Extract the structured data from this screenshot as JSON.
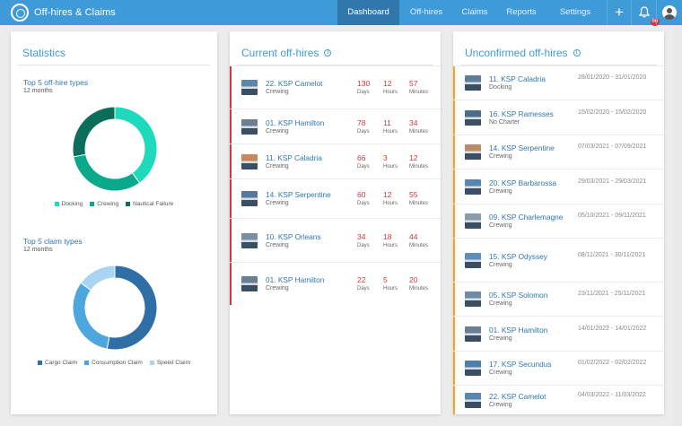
{
  "app": {
    "title": "Off-hires & Claims",
    "notification_count": "66"
  },
  "nav": [
    {
      "label": "Dashboard",
      "active": true
    },
    {
      "label": "Off-hires"
    },
    {
      "label": "Claims"
    },
    {
      "label": "Reports"
    },
    {
      "label": "Settings"
    }
  ],
  "icons": {
    "add": "plus-icon",
    "notifications": "bell-icon",
    "user": "avatar-icon",
    "logo": "helm-icon",
    "info": "info-icon"
  },
  "colors": {
    "accent": "#3f9ad8",
    "nav_active": "#2f77ac",
    "red": "#d9333f",
    "orange": "#f2a623"
  },
  "statistics": {
    "title": "Statistics",
    "offhire_types": {
      "title": "Top 5 off-hire types",
      "subtitle": "12 months",
      "slices": [
        {
          "label": "Docking",
          "value": 40,
          "color": "#1fd9bb"
        },
        {
          "label": "Crewing",
          "value": 32,
          "color": "#0ba98c"
        },
        {
          "label": "Nautical Failure",
          "value": 28,
          "color": "#0c6e5a"
        }
      ]
    },
    "claim_types": {
      "title": "Top 5 claim types",
      "subtitle": "12 months",
      "slices": [
        {
          "label": "Cargo Claim",
          "value": 53,
          "color": "#2f6fa6"
        },
        {
          "label": "Consumption Claim",
          "value": 32,
          "color": "#4ea6de"
        },
        {
          "label": "Speed Claim",
          "value": 15,
          "color": "#a9d5f2"
        }
      ]
    }
  },
  "chart_data": [
    {
      "type": "pie",
      "title": "Top 5 off-hire types",
      "subtitle": "12 months",
      "categories": [
        "Docking",
        "Crewing",
        "Nautical Failure"
      ],
      "values": [
        40,
        32,
        28
      ],
      "legend": "bottom"
    },
    {
      "type": "pie",
      "title": "Top 5 claim types",
      "subtitle": "12 months",
      "categories": [
        "Cargo Claim",
        "Consumption Claim",
        "Speed Claim"
      ],
      "values": [
        53,
        32,
        15
      ],
      "legend": "bottom"
    }
  ],
  "current": {
    "title": "Current off-hires",
    "unit_labels": {
      "days": "Days",
      "hours": "Hours",
      "minutes": "Minutes"
    },
    "items": [
      {
        "name": "22. KSP Camelot",
        "type": "Crewing",
        "days": "130",
        "hours": "12",
        "minutes": "57",
        "thumb": "#5a86ad"
      },
      {
        "name": "01. KSP Hamilton",
        "type": "Crewing",
        "days": "78",
        "hours": "11",
        "minutes": "34",
        "thumb": "#6b7f93"
      },
      {
        "name": "11. KSP Caladria",
        "type": "Crewing",
        "days": "66",
        "hours": "3",
        "minutes": "12",
        "thumb": "#c9875f"
      },
      {
        "name": "14. KSP Serpentine",
        "type": "Crewing",
        "days": "60",
        "hours": "12",
        "minutes": "55",
        "thumb": "#55789c"
      },
      {
        "name": "10. KSP Orleans",
        "type": "Crewing",
        "days": "34",
        "hours": "18",
        "minutes": "44",
        "thumb": "#7a8fa3"
      },
      {
        "name": "01. KSP Hamilton",
        "type": "Crewing",
        "days": "22",
        "hours": "5",
        "minutes": "20",
        "thumb": "#6b7f93"
      }
    ]
  },
  "unconfirmed": {
    "title": "Unconfirmed off-hires",
    "items": [
      {
        "name": "11. KSP Caladria",
        "type": "Docking",
        "dates": "28/01/2020 - 31/01/2020",
        "thumb": "#5f7d99"
      },
      {
        "name": "16. KSP Ramesses",
        "type": "No Charter",
        "dates": "15/02/2020 - 15/02/2020",
        "thumb": "#4d6c8a"
      },
      {
        "name": "14. KSP Serpentine",
        "type": "Crewing",
        "dates": "07/03/2021 - 07/09/2021",
        "thumb": "#c08a6a"
      },
      {
        "name": "20. KSP Barbarossa",
        "type": "Crewing",
        "dates": "29/03/2021 - 29/03/2021",
        "thumb": "#5a86ad"
      },
      {
        "name": "09. KSP Charlemagne",
        "type": "Crewing",
        "dates": "05/10/2021 - 09/11/2021",
        "thumb": "#8a9bab"
      },
      {
        "name": "15. KSP Odyssey",
        "type": "Crewing",
        "dates": "08/11/2021 - 30/11/2021",
        "thumb": "#5f8fb8"
      },
      {
        "name": "05. KSP Solomon",
        "type": "Crewing",
        "dates": "23/11/2021 - 25/11/2021",
        "thumb": "#6e8aa4"
      },
      {
        "name": "01. KSP Hamilton",
        "type": "Crewing",
        "dates": "14/01/2022 - 14/01/2022",
        "thumb": "#6b7f93"
      },
      {
        "name": "17. KSP Secundus",
        "type": "Crewing",
        "dates": "01/02/2022 - 02/02/2022",
        "thumb": "#4f7ea8"
      },
      {
        "name": "22. KSP Camelot",
        "type": "Crewing",
        "dates": "04/03/2022 - 11/03/2022",
        "thumb": "#5a86ad"
      }
    ]
  }
}
